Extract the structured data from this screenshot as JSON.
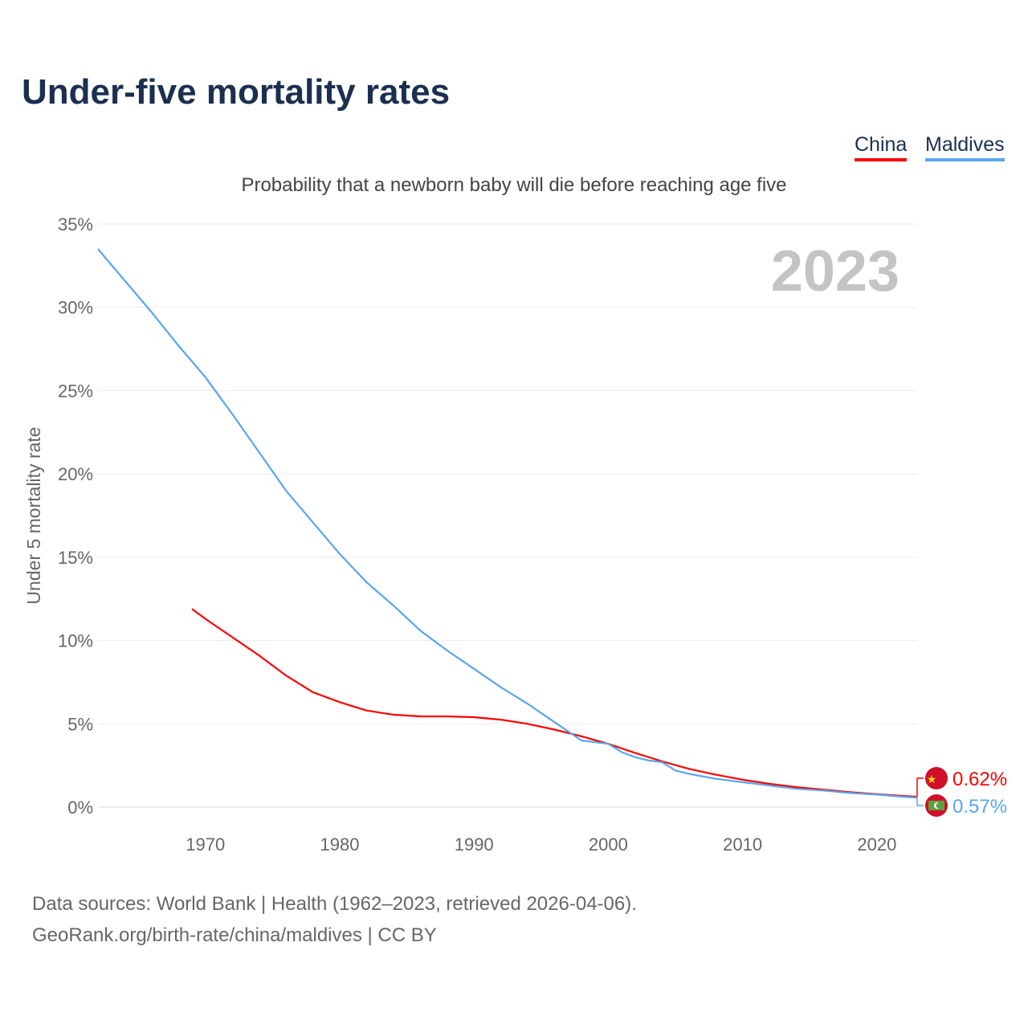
{
  "title": "Under-five mortality rates",
  "subtitle": "Probability that a newborn baby will die before reaching age five",
  "source_line1": "Data sources: World Bank | Health (1962–2023, retrieved 2026-04-06).",
  "source_line2": "GeoRank.org/birth-rate/china/maldives | CC BY",
  "chart_data": {
    "type": "line",
    "title": "Under-five mortality rates",
    "ylabel": "Under 5 mortality rate",
    "xlabel": "",
    "year_label": "2023",
    "xlim": [
      1962,
      2023
    ],
    "ylim": [
      0,
      35
    ],
    "xticks": [
      1970,
      1980,
      1990,
      2000,
      2010,
      2020
    ],
    "yticks": [
      0,
      5,
      10,
      15,
      20,
      25,
      30,
      35
    ],
    "ytick_labels": [
      "0%",
      "5%",
      "10%",
      "15%",
      "20%",
      "25%",
      "30%",
      "35%"
    ],
    "legend": "top-right",
    "series": [
      {
        "name": "China",
        "color": "#ff0000",
        "end_label": "0.62%",
        "x": [
          1969,
          1970,
          1972,
          1974,
          1976,
          1978,
          1980,
          1982,
          1984,
          1986,
          1988,
          1990,
          1992,
          1994,
          1996,
          1998,
          2000,
          2002,
          2004,
          2006,
          2008,
          2010,
          2012,
          2014,
          2016,
          2018,
          2020,
          2022,
          2023
        ],
        "y": [
          11.9,
          11.3,
          10.2,
          9.1,
          7.9,
          6.9,
          6.3,
          5.8,
          5.55,
          5.45,
          5.45,
          5.4,
          5.25,
          5.0,
          4.65,
          4.25,
          3.8,
          3.25,
          2.75,
          2.3,
          1.95,
          1.65,
          1.4,
          1.2,
          1.05,
          0.9,
          0.78,
          0.67,
          0.62
        ]
      },
      {
        "name": "Maldives",
        "color": "#5aa5ec",
        "end_label": "0.57%",
        "x": [
          1962,
          1964,
          1966,
          1968,
          1970,
          1972,
          1974,
          1976,
          1978,
          1980,
          1982,
          1984,
          1986,
          1988,
          1990,
          1992,
          1994,
          1996,
          1998,
          2000,
          2001,
          2002,
          2003,
          2004,
          2005,
          2006,
          2008,
          2010,
          2012,
          2014,
          2016,
          2018,
          2020,
          2022,
          2023
        ],
        "y": [
          33.5,
          31.6,
          29.7,
          27.7,
          25.8,
          23.6,
          21.3,
          19.0,
          17.1,
          15.2,
          13.5,
          12.1,
          10.6,
          9.4,
          8.3,
          7.2,
          6.2,
          5.1,
          4.0,
          3.8,
          3.3,
          3.0,
          2.8,
          2.7,
          2.2,
          2.0,
          1.7,
          1.5,
          1.3,
          1.1,
          1.0,
          0.85,
          0.75,
          0.62,
          0.57
        ]
      }
    ]
  }
}
